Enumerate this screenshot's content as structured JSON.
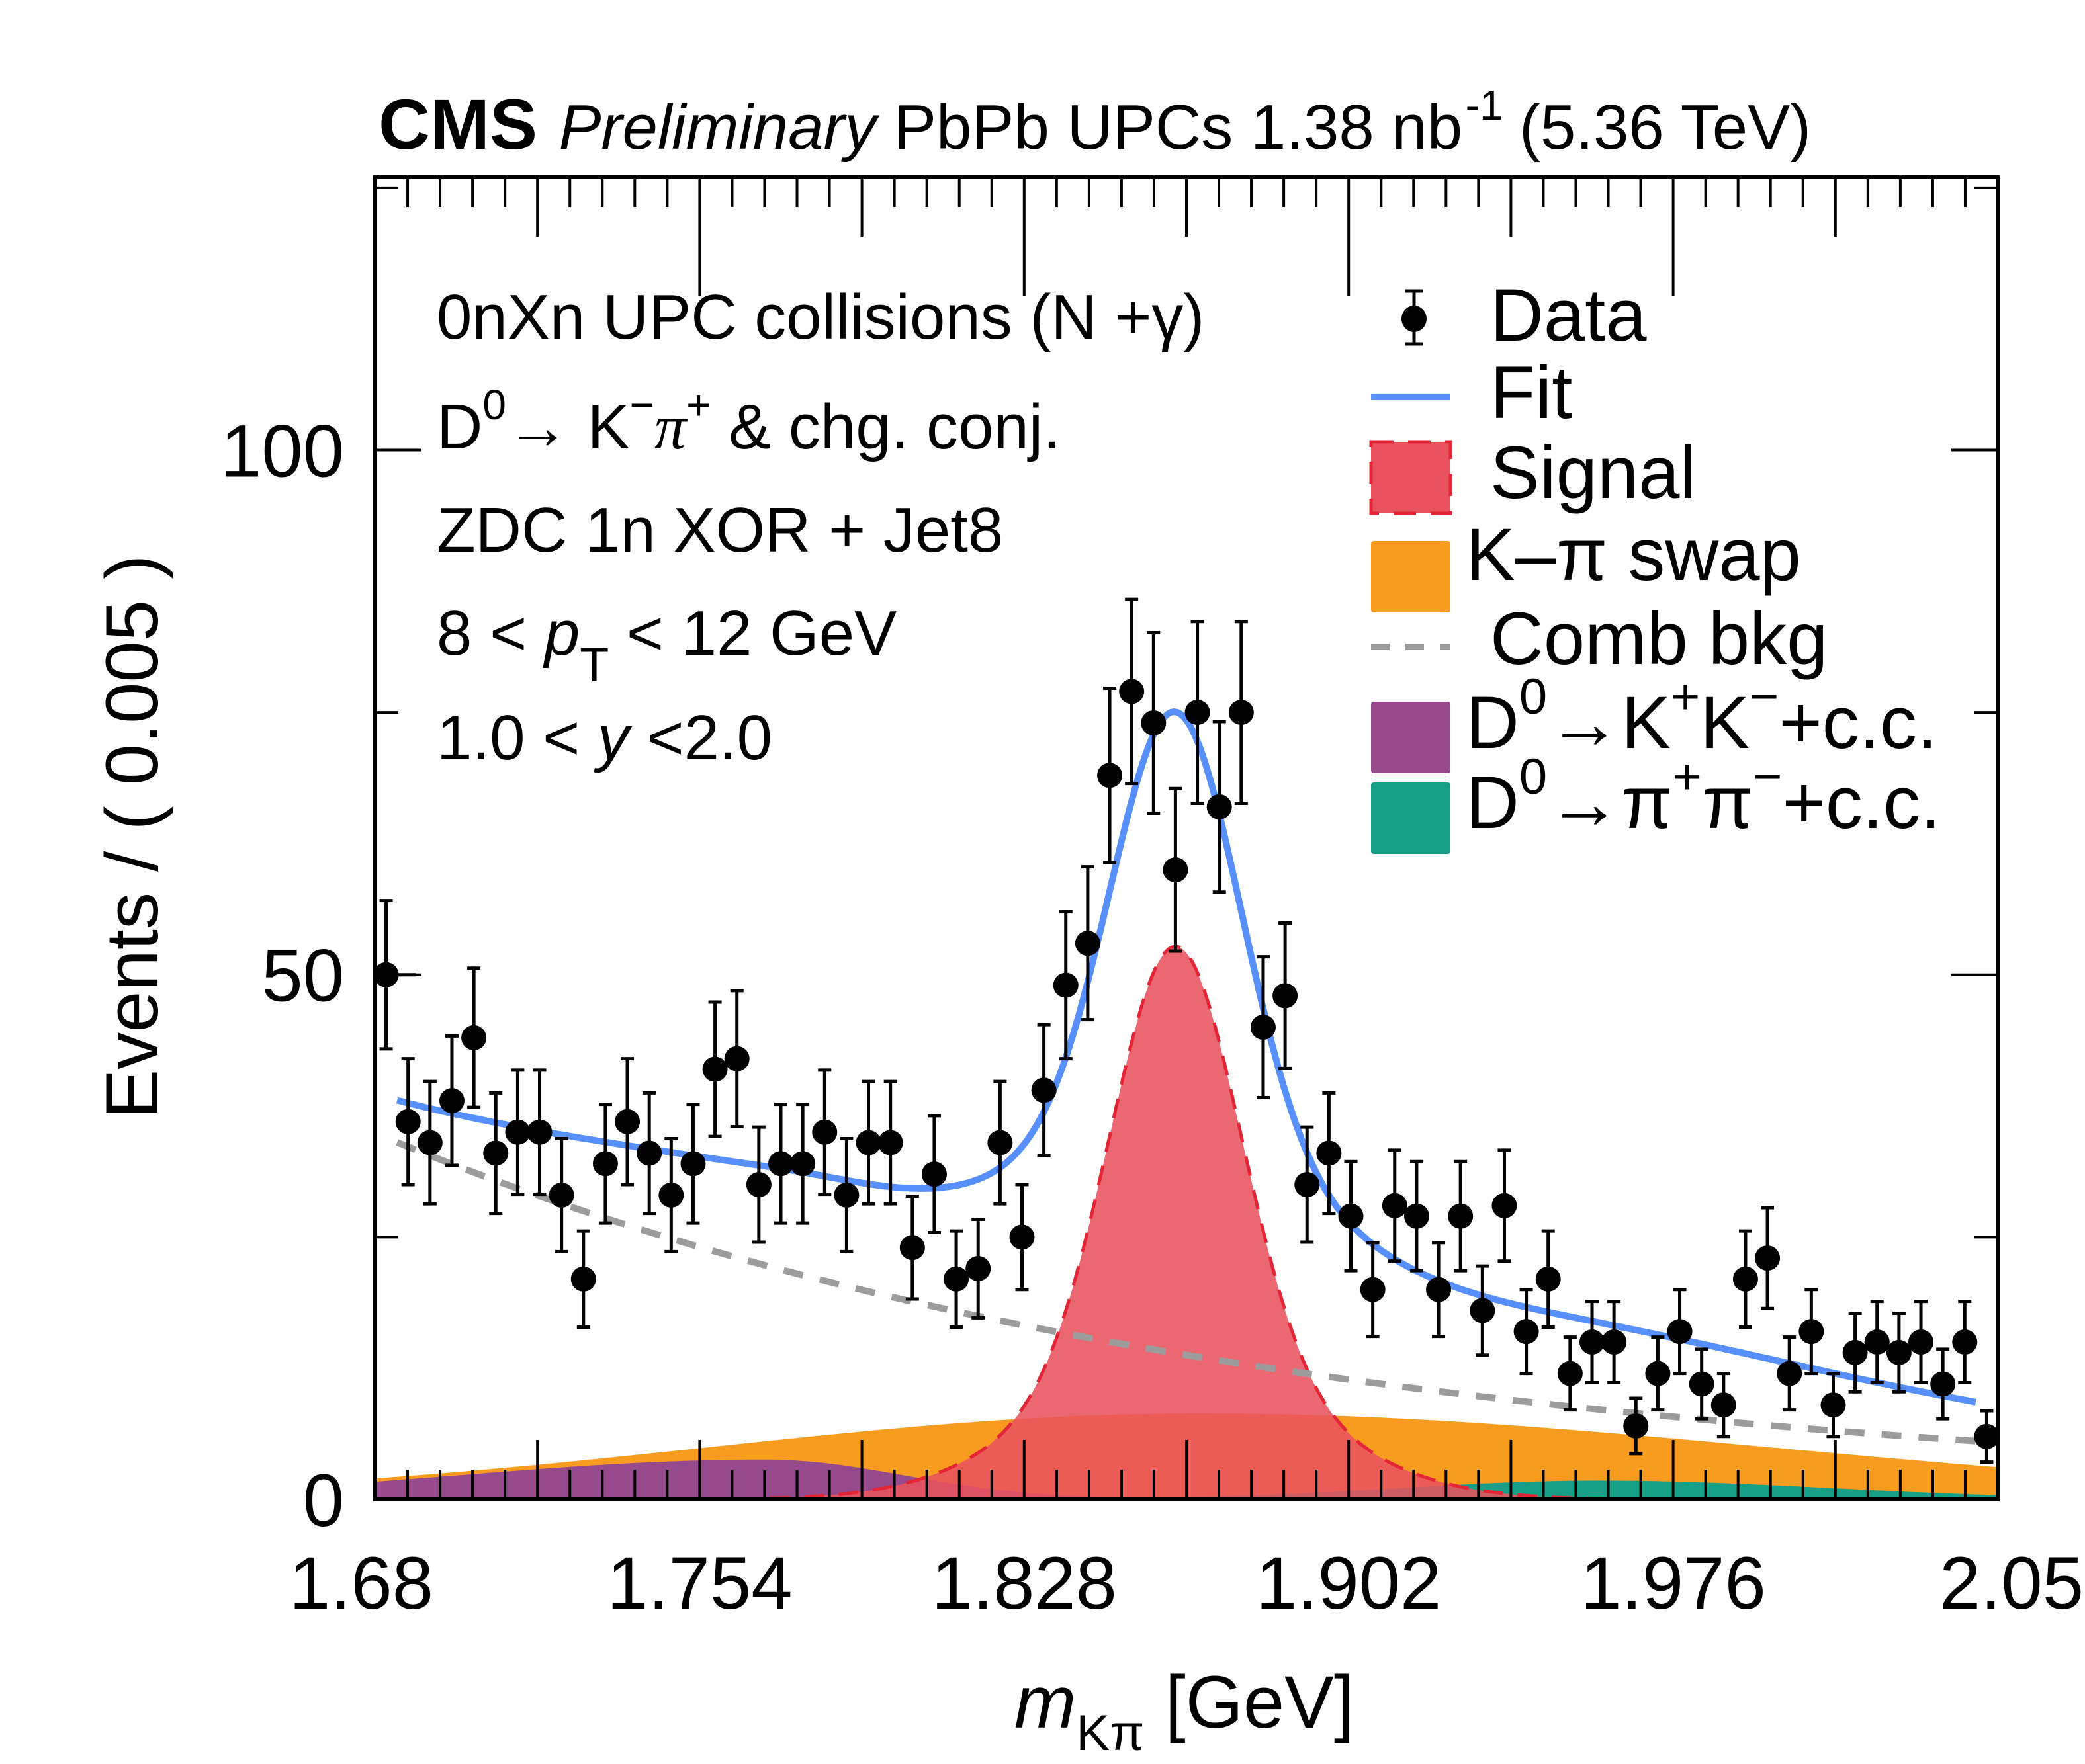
{
  "header": {
    "experiment": "CMS",
    "status": "Preliminary",
    "lumi_prefix": "PbPb UPCs 1.38 nb",
    "lumi_exp": "-1",
    "energy": "(5.36 TeV)"
  },
  "info_lines": {
    "line1": "0nXn UPC collisions (N +γ)",
    "line2_a": "D",
    "line2_sup": "0",
    "line2_b": "→ K",
    "line2_sup2": "−",
    "line2_c": "π",
    "line2_sup3": "+",
    "line2_d": " & chg. conj.",
    "line3": "ZDC 1n XOR + Jet8",
    "line4_a": "8 < ",
    "line4_p": "p",
    "line4_sub": "T",
    "line4_b": " < 12 GeV",
    "line5_a": "1.0 < ",
    "line5_y": "y",
    "line5_b": " <2.0"
  },
  "legend": {
    "data": "Data",
    "fit": "Fit",
    "signal": "Signal",
    "swap": "K–π swap",
    "comb": "Comb bkg",
    "kk_a": "D",
    "kk_sup0": "0",
    "kk_b": "→K",
    "kk_sup1": "+",
    "kk_c": "K",
    "kk_sup2": "−",
    "kk_d": "+c.c.",
    "pipi_a": "D",
    "pipi_sup0": "0",
    "pipi_b": "→π",
    "pipi_sup1": "+",
    "pipi_c": "π",
    "pipi_sup2": "−",
    "pipi_d": "+c.c."
  },
  "colors": {
    "fit": "#5790fc",
    "signal_fill": "#e8535f",
    "signal_edge": "#e42536",
    "swap": "#f89c20",
    "comb": "#9c9c9c",
    "kk": "#964a8b",
    "pipi": "#17a086",
    "data": "#000000"
  },
  "chart_data": {
    "type": "scatter",
    "title": "CMS Preliminary PbPb UPCs 1.38 nb^-1 (5.36 TeV)",
    "xlabel": "m_Kπ [GeV]",
    "xlabel_main": "m",
    "xlabel_sub": "Kπ",
    "xlabel_unit": " [GeV]",
    "ylabel": "Events / ( 0.005 )",
    "xlim": [
      1.68,
      2.05
    ],
    "ylim": [
      0,
      126
    ],
    "x_ticks": [
      "1.68",
      "1.754",
      "1.828",
      "1.902",
      "1.976",
      "2.05"
    ],
    "x_tick_values": [
      1.68,
      1.754,
      1.828,
      1.902,
      1.976,
      2.05
    ],
    "y_ticks": [
      "0",
      "50",
      "100"
    ],
    "y_tick_values": [
      0,
      50,
      100
    ],
    "grid": false,
    "legend_position": "top-right",
    "bin_width": 0.005,
    "data": {
      "name": "Data",
      "x_first_bin_center": 1.6825,
      "counts": [
        50,
        36,
        34,
        38,
        44,
        33,
        35,
        35,
        29,
        21,
        32,
        36,
        33,
        29,
        32,
        41,
        42,
        30,
        32,
        32,
        35,
        29,
        34,
        34,
        24,
        31,
        21,
        22,
        34,
        25,
        39,
        49,
        53,
        69,
        77,
        74,
        60,
        75,
        66,
        75,
        45,
        48,
        30,
        33,
        27,
        20,
        28,
        27,
        20,
        27,
        18,
        28,
        16,
        21,
        12,
        15,
        15,
        7,
        12,
        16,
        11,
        9,
        21,
        23,
        12,
        16,
        9,
        14,
        15,
        14,
        15,
        11,
        15,
        6
      ],
      "errors": "sqrt(N)"
    },
    "components": {
      "comb_bkg": {
        "name": "Comb bkg",
        "model": "exponential",
        "amplitude_at_1.68": 34.9,
        "slope_per_GeV": -5.03
      },
      "signal": {
        "name": "Signal",
        "model": "double-gaussian",
        "mean": 1.8625,
        "amp1": 40.0,
        "sigma1": 0.0145,
        "amp2": 12.7,
        "sigma2": 0.03,
        "peak": 52.7
      },
      "swap": {
        "name": "K–π swap",
        "model": "bifurcated-gaussian",
        "mean": 1.868,
        "amp": 8.2,
        "sigma_left": 0.112,
        "sigma_right": 0.13
      },
      "kk": {
        "name": "D0→K+K−+c.c.",
        "model": "bifurcated-gaussian",
        "mean": 1.769,
        "amp": 3.8,
        "sigma_left": 0.07,
        "sigma_right": 0.0315
      },
      "pipi": {
        "name": "D0→π+π−+c.c.",
        "model": "bifurcated-gaussian",
        "mean": 1.959,
        "amp": 1.8,
        "sigma_left": 0.045,
        "sigma_right": 0.0525
      },
      "fit": {
        "name": "Fit",
        "model": "sum of all components",
        "peak": 76
      }
    }
  }
}
